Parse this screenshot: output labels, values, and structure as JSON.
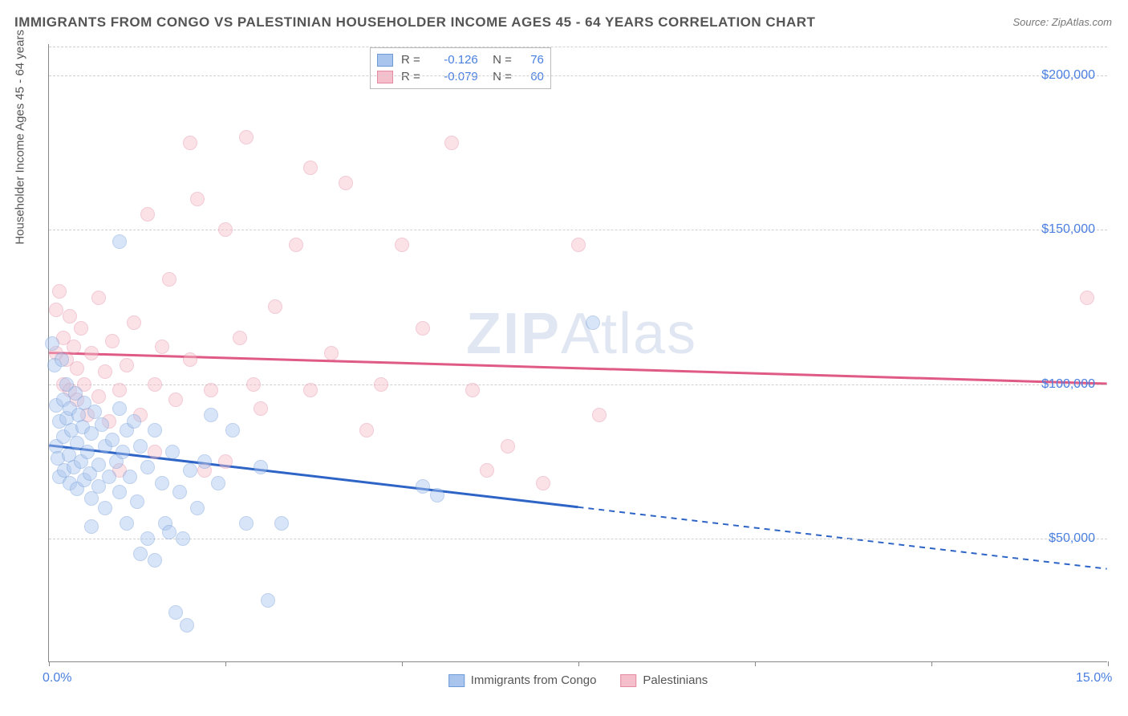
{
  "title": "IMMIGRANTS FROM CONGO VS PALESTINIAN HOUSEHOLDER INCOME AGES 45 - 64 YEARS CORRELATION CHART",
  "source": "Source: ZipAtlas.com",
  "ylabel": "Householder Income Ages 45 - 64 years",
  "watermark_a": "ZIP",
  "watermark_b": "Atlas",
  "chart": {
    "type": "scatter-with-regression",
    "xlim": [
      0,
      15
    ],
    "ylim": [
      10000,
      210000
    ],
    "xticks": [
      {
        "v": 0,
        "label": "0.0%"
      },
      {
        "v": 15,
        "label": "15.0%"
      }
    ],
    "yticks": [
      {
        "v": 50000,
        "label": "$50,000"
      },
      {
        "v": 100000,
        "label": "$100,000"
      },
      {
        "v": 150000,
        "label": "$150,000"
      },
      {
        "v": 200000,
        "label": "$200,000"
      }
    ],
    "xtick_marks": [
      0,
      2.5,
      5,
      7.5,
      10,
      12.5,
      15
    ],
    "background": "#ffffff",
    "grid_color": "#d0d0d0",
    "tick_color": "#4a7fe0",
    "label_color": "#555555",
    "marker_radius": 9,
    "marker_opacity": 0.45,
    "series": {
      "congo": {
        "label": "Immigrants from Congo",
        "color_fill": "#a9c5ee",
        "color_stroke": "#6e9ad8",
        "R": "-0.126",
        "N": "76",
        "reg": {
          "y_at_x0": 80000,
          "y_at_x15": 40000,
          "solid_until_x": 7.5
        },
        "points": [
          [
            0.05,
            113000
          ],
          [
            0.08,
            106000
          ],
          [
            0.1,
            93000
          ],
          [
            0.1,
            80000
          ],
          [
            0.12,
            76000
          ],
          [
            0.15,
            88000
          ],
          [
            0.15,
            70000
          ],
          [
            0.18,
            108000
          ],
          [
            0.2,
            95000
          ],
          [
            0.2,
            83000
          ],
          [
            0.22,
            72000
          ],
          [
            0.25,
            100000
          ],
          [
            0.25,
            89000
          ],
          [
            0.28,
            77000
          ],
          [
            0.3,
            92000
          ],
          [
            0.3,
            68000
          ],
          [
            0.32,
            85000
          ],
          [
            0.35,
            73000
          ],
          [
            0.38,
            97000
          ],
          [
            0.4,
            81000
          ],
          [
            0.4,
            66000
          ],
          [
            0.42,
            90000
          ],
          [
            0.45,
            75000
          ],
          [
            0.48,
            86000
          ],
          [
            0.5,
            69000
          ],
          [
            0.5,
            94000
          ],
          [
            0.55,
            78000
          ],
          [
            0.58,
            71000
          ],
          [
            0.6,
            84000
          ],
          [
            0.6,
            63000
          ],
          [
            0.65,
            91000
          ],
          [
            0.7,
            74000
          ],
          [
            0.7,
            67000
          ],
          [
            0.75,
            87000
          ],
          [
            0.8,
            80000
          ],
          [
            0.8,
            60000
          ],
          [
            0.85,
            70000
          ],
          [
            0.9,
            82000
          ],
          [
            0.95,
            75000
          ],
          [
            1.0,
            146000
          ],
          [
            1.0,
            92000
          ],
          [
            1.0,
            65000
          ],
          [
            1.05,
            78000
          ],
          [
            1.1,
            85000
          ],
          [
            1.1,
            55000
          ],
          [
            1.15,
            70000
          ],
          [
            1.2,
            88000
          ],
          [
            1.25,
            62000
          ],
          [
            1.3,
            80000
          ],
          [
            1.3,
            45000
          ],
          [
            1.4,
            73000
          ],
          [
            1.4,
            50000
          ],
          [
            1.5,
            85000
          ],
          [
            1.5,
            43000
          ],
          [
            1.6,
            68000
          ],
          [
            1.65,
            55000
          ],
          [
            1.7,
            52000
          ],
          [
            1.75,
            78000
          ],
          [
            1.8,
            26000
          ],
          [
            1.85,
            65000
          ],
          [
            1.9,
            50000
          ],
          [
            1.95,
            22000
          ],
          [
            2.0,
            72000
          ],
          [
            2.1,
            60000
          ],
          [
            2.2,
            75000
          ],
          [
            2.3,
            90000
          ],
          [
            2.4,
            68000
          ],
          [
            2.6,
            85000
          ],
          [
            2.8,
            55000
          ],
          [
            3.0,
            73000
          ],
          [
            3.1,
            30000
          ],
          [
            3.3,
            55000
          ],
          [
            5.3,
            67000
          ],
          [
            5.5,
            64000
          ],
          [
            7.7,
            120000
          ],
          [
            0.6,
            54000
          ]
        ]
      },
      "palestinian": {
        "label": "Palestinians",
        "color_fill": "#f4bfcb",
        "color_stroke": "#e48ba3",
        "R": "-0.079",
        "N": "60",
        "reg": {
          "y_at_x0": 110000,
          "y_at_x15": 100000,
          "solid_until_x": 15
        },
        "points": [
          [
            0.1,
            124000
          ],
          [
            0.1,
            110000
          ],
          [
            0.15,
            130000
          ],
          [
            0.2,
            115000
          ],
          [
            0.2,
            100000
          ],
          [
            0.25,
            108000
          ],
          [
            0.3,
            122000
          ],
          [
            0.3,
            98000
          ],
          [
            0.35,
            112000
          ],
          [
            0.4,
            105000
          ],
          [
            0.4,
            95000
          ],
          [
            0.45,
            118000
          ],
          [
            0.5,
            100000
          ],
          [
            0.55,
            90000
          ],
          [
            0.6,
            110000
          ],
          [
            0.7,
            128000
          ],
          [
            0.7,
            96000
          ],
          [
            0.8,
            104000
          ],
          [
            0.85,
            88000
          ],
          [
            0.9,
            114000
          ],
          [
            1.0,
            98000
          ],
          [
            1.0,
            72000
          ],
          [
            1.1,
            106000
          ],
          [
            1.2,
            120000
          ],
          [
            1.3,
            90000
          ],
          [
            1.4,
            155000
          ],
          [
            1.5,
            100000
          ],
          [
            1.5,
            78000
          ],
          [
            1.6,
            112000
          ],
          [
            1.7,
            134000
          ],
          [
            1.8,
            95000
          ],
          [
            2.0,
            178000
          ],
          [
            2.0,
            108000
          ],
          [
            2.1,
            160000
          ],
          [
            2.2,
            72000
          ],
          [
            2.3,
            98000
          ],
          [
            2.5,
            150000
          ],
          [
            2.5,
            75000
          ],
          [
            2.7,
            115000
          ],
          [
            2.8,
            180000
          ],
          [
            2.9,
            100000
          ],
          [
            3.0,
            92000
          ],
          [
            3.2,
            125000
          ],
          [
            3.5,
            145000
          ],
          [
            3.7,
            170000
          ],
          [
            3.7,
            98000
          ],
          [
            4.0,
            110000
          ],
          [
            4.2,
            165000
          ],
          [
            4.5,
            85000
          ],
          [
            4.7,
            100000
          ],
          [
            5.0,
            145000
          ],
          [
            5.3,
            118000
          ],
          [
            5.7,
            178000
          ],
          [
            6.0,
            98000
          ],
          [
            6.2,
            72000
          ],
          [
            6.5,
            80000
          ],
          [
            7.0,
            68000
          ],
          [
            7.5,
            145000
          ],
          [
            7.8,
            90000
          ],
          [
            14.7,
            128000
          ]
        ]
      }
    }
  }
}
